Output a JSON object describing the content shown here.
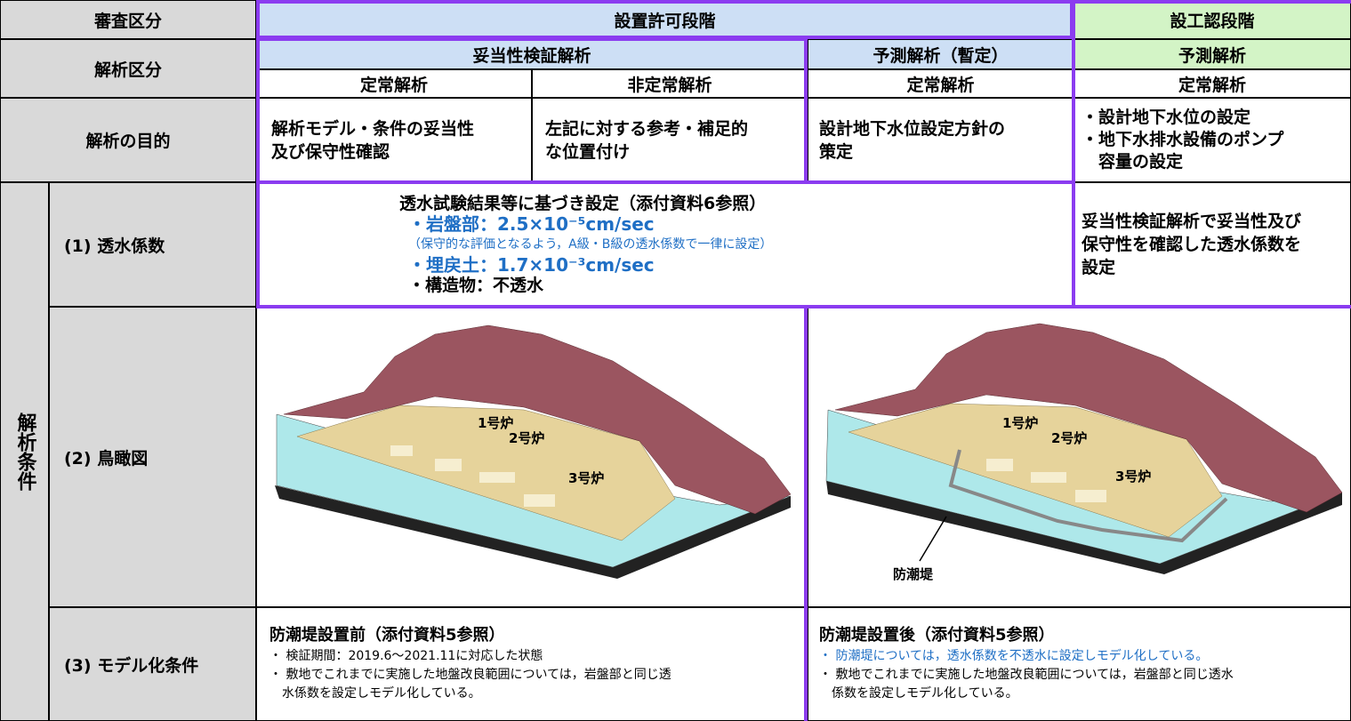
{
  "header": {
    "review_label": "審査区分",
    "stage_permit": "設置許可段階",
    "stage_design": "設工認段階"
  },
  "analysis": {
    "label": "解析区分",
    "validation": "妥当性検証解析",
    "prediction_provisional": "予測解析（暫定）",
    "prediction": "予測解析",
    "sub": [
      "定常解析",
      "非定常解析",
      "定常解析",
      "定常解析"
    ]
  },
  "purpose": {
    "label": "解析の目的",
    "cells": [
      [
        "解析モデル・条件の妥当性",
        "及び保守性確認"
      ],
      [
        "左記に対する参考・補足的",
        "な位置付け"
      ],
      [
        "設計地下水位設定方針の",
        "策定"
      ],
      [
        "・設計地下水位の設定",
        "・地下水排水設備のポンプ",
        "　容量の設定"
      ]
    ]
  },
  "conditions": {
    "label": "解析条件",
    "permeability": {
      "label": "(1) 透水係数",
      "lines": [
        "透水試験結果等に基づき設定（添付資料6参照）",
        "・岩盤部：2.5×10⁻⁵cm/sec",
        "（保守的な評価となるよう，A級・B級の透水係数で一律に設定）",
        "・埋戻土：1.7×10⁻³cm/sec",
        "・構造物：不透水"
      ],
      "design": [
        "妥当性検証解析で妥当性及び",
        "保守性を確認した透水係数を",
        "設定"
      ]
    },
    "birdseye": {
      "label": "(2) 鳥瞰図",
      "before_units": [
        "1号炉",
        "2号炉",
        "3号炉"
      ],
      "after_units": [
        "1号炉",
        "2号炉",
        "3号炉"
      ],
      "seawall": "防潮堤"
    },
    "modeling": {
      "label": "(3) モデル化条件",
      "before": {
        "title": "防潮堤設置前（添付資料5参照）",
        "items": [
          "・ 検証期間：2019.6～2021.11に対応した状態",
          "・ 敷地でこれまでに実施した地盤改良範囲については，岩盤部と同じ透",
          "　水係数を設定しモデル化している。"
        ]
      },
      "after": {
        "title": "防潮堤設置後（添付資料5参照）",
        "items": [
          "・ 防潮堤については，透水係数を不透水に設定しモデル化している。",
          "・ 敷地でこれまでに実施した地盤改良範囲については，岩盤部と同じ透水",
          "　係数を設定しモデル化している。"
        ]
      }
    }
  }
}
